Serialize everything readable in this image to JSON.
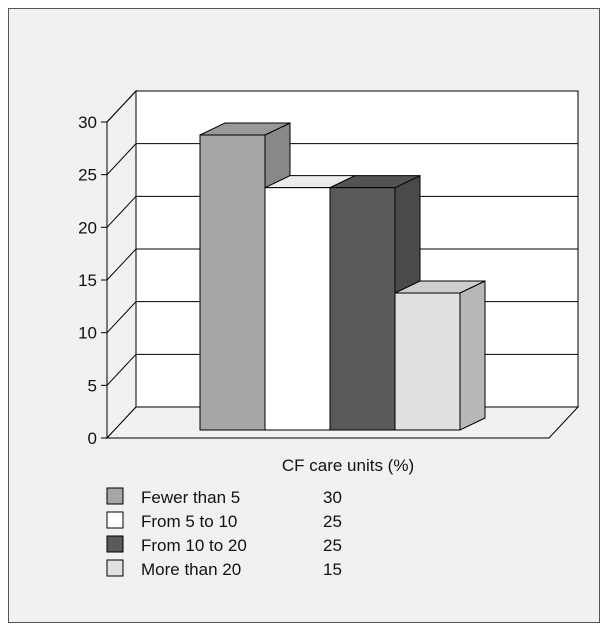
{
  "chart_data": {
    "type": "bar",
    "style": "3d",
    "xlabel": "CF care units (%)",
    "ylabel": "",
    "title": "",
    "ylim": [
      0,
      30
    ],
    "yticks": [
      "0",
      "5",
      "10",
      "15",
      "20",
      "25",
      "30"
    ],
    "grid": true,
    "legend_position": "bottom",
    "series": [
      {
        "name": "Fewer than 5",
        "value": 30,
        "legend_value": "30",
        "color": "#a6a6a6"
      },
      {
        "name": "From 5 to 10",
        "value": 25,
        "legend_value": "25",
        "color": "#ffffff"
      },
      {
        "name": "From 10 to 20",
        "value": 25,
        "legend_value": "25",
        "color": "#5a5a5a"
      },
      {
        "name": "More than 20",
        "value": 15,
        "legend_value": "15",
        "color": "#e0e0e0"
      }
    ]
  }
}
